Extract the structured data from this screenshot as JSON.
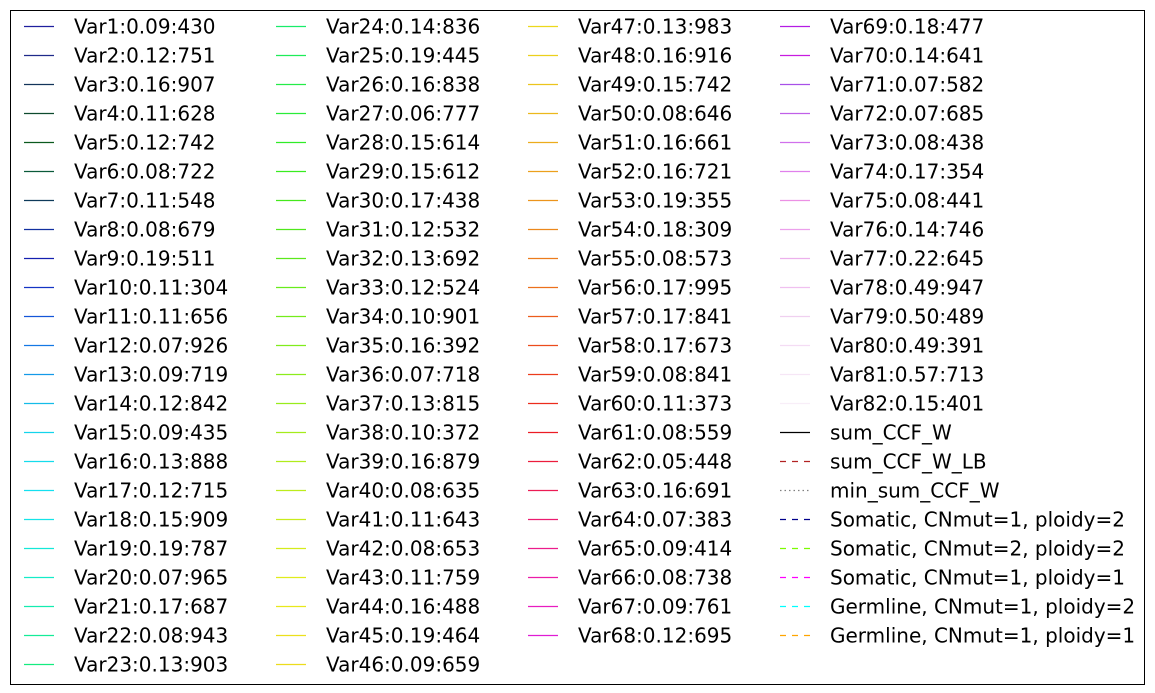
{
  "chart_data": {
    "type": "line",
    "title": "",
    "xlabel": "",
    "ylabel": "",
    "grid": false,
    "legend_placement": "full-panel, 4 columns",
    "series": [
      {
        "name": "Var1:0.09:430",
        "color": "#1f1f9e",
        "style": "solid"
      },
      {
        "name": "Var2:0.12:751",
        "color": "#1f2a8a",
        "style": "solid"
      },
      {
        "name": "Var3:0.16:907",
        "color": "#13345a",
        "style": "solid"
      },
      {
        "name": "Var4:0.11:628",
        "color": "#0e4a2e",
        "style": "solid"
      },
      {
        "name": "Var5:0.12:742",
        "color": "#0b5a1e",
        "style": "solid"
      },
      {
        "name": "Var6:0.08:722",
        "color": "#0a5a3a",
        "style": "solid"
      },
      {
        "name": "Var7:0.11:548",
        "color": "#0e3a5a",
        "style": "solid"
      },
      {
        "name": "Var8:0.08:679",
        "color": "#1230a0",
        "style": "solid"
      },
      {
        "name": "Var9:0.19:511",
        "color": "#1420b0",
        "style": "solid"
      },
      {
        "name": "Var10:0.11:304",
        "color": "#1434c4",
        "style": "solid"
      },
      {
        "name": "Var11:0.11:656",
        "color": "#1456d8",
        "style": "solid"
      },
      {
        "name": "Var12:0.07:926",
        "color": "#1478e4",
        "style": "solid"
      },
      {
        "name": "Var13:0.09:719",
        "color": "#149ae8",
        "style": "solid"
      },
      {
        "name": "Var14:0.12:842",
        "color": "#14bce8",
        "style": "solid"
      },
      {
        "name": "Var15:0.09:435",
        "color": "#14d4ec",
        "style": "solid"
      },
      {
        "name": "Var16:0.13:888",
        "color": "#14dcec",
        "style": "solid"
      },
      {
        "name": "Var17:0.12:715",
        "color": "#14e0f0",
        "style": "solid"
      },
      {
        "name": "Var18:0.15:909",
        "color": "#14e4e8",
        "style": "solid"
      },
      {
        "name": "Var19:0.19:787",
        "color": "#14e8d8",
        "style": "solid"
      },
      {
        "name": "Var20:0.07:965",
        "color": "#14ecc8",
        "style": "solid"
      },
      {
        "name": "Var21:0.17:687",
        "color": "#14ecb0",
        "style": "solid"
      },
      {
        "name": "Var22:0.08:943",
        "color": "#14ec98",
        "style": "solid"
      },
      {
        "name": "Var23:0.13:903",
        "color": "#14ec80",
        "style": "solid"
      },
      {
        "name": "Var24:0.14:836",
        "color": "#18ec6a",
        "style": "solid"
      },
      {
        "name": "Var25:0.19:445",
        "color": "#1eec58",
        "style": "solid"
      },
      {
        "name": "Var26:0.16:838",
        "color": "#24ec48",
        "style": "solid"
      },
      {
        "name": "Var27:0.06:777",
        "color": "#2aec38",
        "style": "solid"
      },
      {
        "name": "Var28:0.15:614",
        "color": "#30ec28",
        "style": "solid"
      },
      {
        "name": "Var29:0.15:612",
        "color": "#38ec20",
        "style": "solid"
      },
      {
        "name": "Var30:0.17:438",
        "color": "#44e81c",
        "style": "solid"
      },
      {
        "name": "Var31:0.12:532",
        "color": "#50e81c",
        "style": "solid"
      },
      {
        "name": "Var32:0.13:692",
        "color": "#5ce81c",
        "style": "solid"
      },
      {
        "name": "Var33:0.12:524",
        "color": "#68ec1c",
        "style": "solid"
      },
      {
        "name": "Var34:0.10:901",
        "color": "#74ec1c",
        "style": "solid"
      },
      {
        "name": "Var35:0.16:392",
        "color": "#80ec1c",
        "style": "solid"
      },
      {
        "name": "Var36:0.07:718",
        "color": "#8cec1c",
        "style": "solid"
      },
      {
        "name": "Var37:0.13:815",
        "color": "#98ec1c",
        "style": "solid"
      },
      {
        "name": "Var38:0.10:372",
        "color": "#a4ec1c",
        "style": "solid"
      },
      {
        "name": "Var39:0.16:879",
        "color": "#b0ec1c",
        "style": "solid"
      },
      {
        "name": "Var40:0.08:635",
        "color": "#bcec1c",
        "style": "solid"
      },
      {
        "name": "Var41:0.11:643",
        "color": "#c8ec1c",
        "style": "solid"
      },
      {
        "name": "Var42:0.08:653",
        "color": "#d4ec1c",
        "style": "solid"
      },
      {
        "name": "Var43:0.11:759",
        "color": "#e0ec1c",
        "style": "solid"
      },
      {
        "name": "Var44:0.16:488",
        "color": "#e8e81c",
        "style": "solid"
      },
      {
        "name": "Var45:0.19:464",
        "color": "#ece01c",
        "style": "solid"
      },
      {
        "name": "Var46:0.09:659",
        "color": "#ecdc1c",
        "style": "solid"
      },
      {
        "name": "Var47:0.13:983",
        "color": "#ecd81c",
        "style": "solid"
      },
      {
        "name": "Var48:0.16:916",
        "color": "#ecd01c",
        "style": "solid"
      },
      {
        "name": "Var49:0.15:742",
        "color": "#ecc41c",
        "style": "solid"
      },
      {
        "name": "Var50:0.08:646",
        "color": "#ecb81c",
        "style": "solid"
      },
      {
        "name": "Var51:0.16:661",
        "color": "#ecac1c",
        "style": "solid"
      },
      {
        "name": "Var52:0.16:721",
        "color": "#eca01c",
        "style": "solid"
      },
      {
        "name": "Var53:0.19:355",
        "color": "#ec941c",
        "style": "solid"
      },
      {
        "name": "Var54:0.18:309",
        "color": "#ec881c",
        "style": "solid"
      },
      {
        "name": "Var55:0.08:573",
        "color": "#ec7c1c",
        "style": "solid"
      },
      {
        "name": "Var56:0.17:995",
        "color": "#ec701c",
        "style": "solid"
      },
      {
        "name": "Var57:0.17:841",
        "color": "#ec5c1c",
        "style": "solid"
      },
      {
        "name": "Var58:0.17:673",
        "color": "#ec4c1c",
        "style": "solid"
      },
      {
        "name": "Var59:0.08:841",
        "color": "#ec3c1c",
        "style": "solid"
      },
      {
        "name": "Var60:0.11:373",
        "color": "#ec2c1c",
        "style": "solid"
      },
      {
        "name": "Var61:0.08:559",
        "color": "#ec1c24",
        "style": "solid"
      },
      {
        "name": "Var62:0.05:448",
        "color": "#ec1c3c",
        "style": "solid"
      },
      {
        "name": "Var63:0.16:691",
        "color": "#ec1c54",
        "style": "solid"
      },
      {
        "name": "Var64:0.07:383",
        "color": "#ec1c70",
        "style": "solid"
      },
      {
        "name": "Var65:0.09:414",
        "color": "#ec1c8c",
        "style": "solid"
      },
      {
        "name": "Var66:0.08:738",
        "color": "#ec1ca8",
        "style": "solid"
      },
      {
        "name": "Var67:0.09:761",
        "color": "#e81cc0",
        "style": "solid"
      },
      {
        "name": "Var68:0.12:695",
        "color": "#e01cd4",
        "style": "solid"
      },
      {
        "name": "Var69:0.18:477",
        "color": "#b41ce4",
        "style": "solid"
      },
      {
        "name": "Var70:0.14:641",
        "color": "#c81ce0",
        "style": "solid"
      },
      {
        "name": "Var71:0.07:582",
        "color": "#a850e8",
        "style": "solid"
      },
      {
        "name": "Var72:0.07:685",
        "color": "#c060e8",
        "style": "solid"
      },
      {
        "name": "Var73:0.08:438",
        "color": "#d070ec",
        "style": "solid"
      },
      {
        "name": "Var74:0.17:354",
        "color": "#e080ec",
        "style": "solid"
      },
      {
        "name": "Var75:0.08:441",
        "color": "#ec90e4",
        "style": "solid"
      },
      {
        "name": "Var76:0.14:746",
        "color": "#eca0ec",
        "style": "solid"
      },
      {
        "name": "Var77:0.22:645",
        "color": "#ecb0ec",
        "style": "solid"
      },
      {
        "name": "Var78:0.49:947",
        "color": "#f0c0f0",
        "style": "solid"
      },
      {
        "name": "Var79:0.50:489",
        "color": "#f0d0f0",
        "style": "solid"
      },
      {
        "name": "Var80:0.49:391",
        "color": "#f4dcf4",
        "style": "solid"
      },
      {
        "name": "Var81:0.57:713",
        "color": "#f6e6f6",
        "style": "solid"
      },
      {
        "name": "Var82:0.15:401",
        "color": "#f8eef8",
        "style": "solid"
      },
      {
        "name": "sum_CCF_W",
        "color": "#000000",
        "style": "solid"
      },
      {
        "name": "sum_CCF_W_LB",
        "color": "#b22222",
        "style": "dashed"
      },
      {
        "name": "min_sum_CCF_W",
        "color": "#808080",
        "style": "dotted"
      },
      {
        "name": "Somatic, CNmut=1, ploidy=2",
        "color": "#00008b",
        "style": "dashed"
      },
      {
        "name": "Somatic, CNmut=2, ploidy=2",
        "color": "#7cfc00",
        "style": "dashed"
      },
      {
        "name": "Somatic, CNmut=1, ploidy=1",
        "color": "#ff00ff",
        "style": "dashed"
      },
      {
        "name": "Germline, CNmut=1, ploidy=2",
        "color": "#00ffff",
        "style": "dashed"
      },
      {
        "name": "Germline, CNmut=1, ploidy=1",
        "color": "#ffa500",
        "style": "dashed"
      }
    ]
  }
}
